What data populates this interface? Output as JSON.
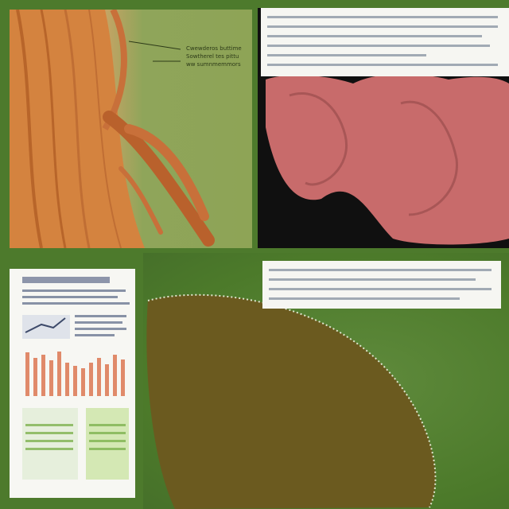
{
  "panels": {
    "top_left": {
      "callout_lines": [
        "Cwewderos buttime",
        "Sowtherel tes pittu",
        "ww sumnmemmors"
      ]
    }
  },
  "colors": {
    "background_green": "#4d7a2c",
    "muscle_orange": "#d98b4e",
    "tissue_pink": "#c96a6a",
    "cell_olive": "#6b5a1f"
  }
}
